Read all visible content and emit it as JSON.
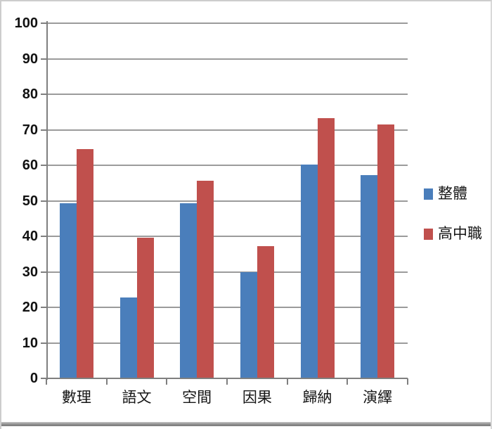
{
  "chart_data": {
    "type": "bar",
    "title": "",
    "xlabel": "",
    "ylabel": "",
    "categories": [
      "數理",
      "語文",
      "空間",
      "因果",
      "歸納",
      "演繹"
    ],
    "series": [
      {
        "name": "整體",
        "color": "#4a7ebb",
        "values": [
          49.4,
          22.8,
          49.4,
          30.0,
          60.2,
          57.2
        ]
      },
      {
        "name": "高中職",
        "color": "#c0504d",
        "values": [
          64.5,
          39.7,
          55.6,
          37.2,
          73.2,
          71.4
        ]
      }
    ],
    "ylim": [
      0,
      100
    ],
    "ytick_step": 10,
    "yticks": [
      0,
      10,
      20,
      30,
      40,
      50,
      60,
      70,
      80,
      90,
      100
    ],
    "grid": true,
    "legend_position": "right"
  },
  "colors": {
    "series_blue": "#4a7ebb",
    "series_red": "#c0504d",
    "gridline": "#9b9b9b",
    "axis": "#7f7f7f",
    "text": "#111111",
    "outer_border": "#cdcdcd",
    "bottom_rule": "#8e8e8e",
    "background": "#ffffff"
  }
}
